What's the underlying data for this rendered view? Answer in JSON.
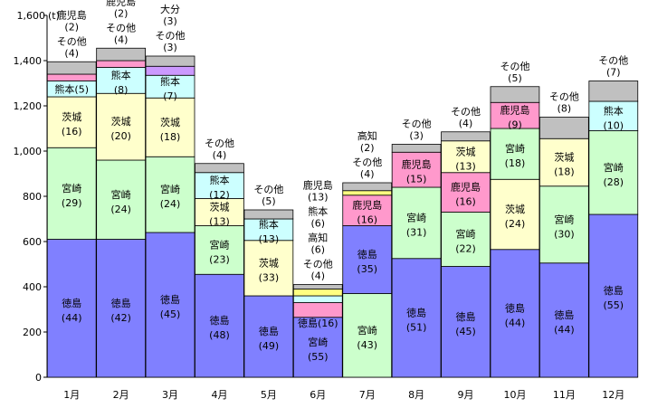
{
  "chart_data": {
    "type": "bar",
    "stacked": true,
    "unit_label": "(t)",
    "ylim": [
      0,
      1600
    ],
    "yticks": [
      "0",
      "200",
      "400",
      "600",
      "800",
      "1,000",
      "1,200",
      "1,400",
      "1,600"
    ],
    "categories": [
      "1月",
      "2月",
      "3月",
      "4月",
      "5月",
      "6月",
      "7月",
      "8月",
      "9月",
      "10月",
      "11月",
      "12月"
    ],
    "colors": {
      "tokushima": "#8080ff",
      "miyazaki": "#ccffcc",
      "ibaraki": "#ffffcc",
      "kumamoto": "#ccffff",
      "kagoshima": "#ff99cc",
      "oita": "#cc99ff",
      "kochi": "#ffff80",
      "sonota": "#c0c0c0"
    },
    "bars": [
      {
        "category": "1月",
        "segments": [
          {
            "key": "tokushima",
            "value": 610,
            "label": "徳島",
            "pct": "(44)"
          },
          {
            "key": "miyazaki",
            "value": 405,
            "label": "宮崎",
            "pct": "(29)"
          },
          {
            "key": "ibaraki",
            "value": 225,
            "label": "茨城",
            "pct": "(16)"
          },
          {
            "key": "kumamoto",
            "value": 70,
            "label": "熊本(5)",
            "pct": ""
          },
          {
            "key": "kagoshima",
            "value": 30,
            "label": "鹿児島",
            "pct": "(2)",
            "above": true
          },
          {
            "key": "sonota",
            "value": 55,
            "label": "その他",
            "pct": "(4)",
            "above": true
          }
        ]
      },
      {
        "category": "2月",
        "segments": [
          {
            "key": "tokushima",
            "value": 610,
            "label": "徳島",
            "pct": "(42)"
          },
          {
            "key": "miyazaki",
            "value": 350,
            "label": "宮崎",
            "pct": "(24)"
          },
          {
            "key": "ibaraki",
            "value": 295,
            "label": "茨城",
            "pct": "(20)"
          },
          {
            "key": "kumamoto",
            "value": 115,
            "label": "熊本",
            "pct": "(8)"
          },
          {
            "key": "kagoshima",
            "value": 30,
            "label": "鹿児島",
            "pct": "(2)",
            "above": true
          },
          {
            "key": "sonota",
            "value": 55,
            "label": "その他",
            "pct": "(4)",
            "above": true
          }
        ]
      },
      {
        "category": "3月",
        "segments": [
          {
            "key": "tokushima",
            "value": 640,
            "label": "徳島",
            "pct": "(45)"
          },
          {
            "key": "miyazaki",
            "value": 335,
            "label": "宮崎",
            "pct": "(24)"
          },
          {
            "key": "ibaraki",
            "value": 260,
            "label": "茨城",
            "pct": "(18)"
          },
          {
            "key": "kumamoto",
            "value": 100,
            "label": "熊本",
            "pct": "(7)"
          },
          {
            "key": "oita",
            "value": 40,
            "label": "大分",
            "pct": "(3)",
            "above": true
          },
          {
            "key": "sonota",
            "value": 45,
            "label": "その他",
            "pct": "(3)",
            "above": true
          }
        ]
      },
      {
        "category": "4月",
        "segments": [
          {
            "key": "tokushima",
            "value": 455,
            "label": "徳島",
            "pct": "(48)"
          },
          {
            "key": "miyazaki",
            "value": 215,
            "label": "宮崎",
            "pct": "(23)"
          },
          {
            "key": "ibaraki",
            "value": 120,
            "label": "茨城",
            "pct": "(13)"
          },
          {
            "key": "kumamoto",
            "value": 115,
            "label": "熊本",
            "pct": "(12)"
          },
          {
            "key": "sonota",
            "value": 40,
            "label": "その他",
            "pct": "(4)",
            "above": true
          }
        ]
      },
      {
        "category": "5月",
        "segments": [
          {
            "key": "tokushima",
            "value": 360,
            "label": "徳島",
            "pct": "(49)"
          },
          {
            "key": "ibaraki",
            "value": 245,
            "label": "茨城",
            "pct": "(33)"
          },
          {
            "key": "kumamoto",
            "value": 95,
            "label": "熊本",
            "pct": "(13)"
          },
          {
            "key": "sonota",
            "value": 40,
            "label": "その他",
            "pct": "(5)",
            "above": true
          }
        ]
      },
      {
        "category": "6月",
        "segments": [
          {
            "key": "tokushima",
            "value": 265,
            "label": "宮崎",
            "pct": "(55)",
            "label2": "徳島(16)"
          },
          {
            "key": "kagoshima",
            "value": 65,
            "label": "鹿児島",
            "pct": "(13)",
            "above": true
          },
          {
            "key": "kumamoto",
            "value": 30,
            "label": "熊本",
            "pct": "(6)",
            "above": true
          },
          {
            "key": "kochi",
            "value": 30,
            "label": "高知",
            "pct": "(6)",
            "above": true
          },
          {
            "key": "sonota",
            "value": 20,
            "label": "その他",
            "pct": "(4)",
            "above": true
          }
        ]
      },
      {
        "category": "7月",
        "segments": [
          {
            "key": "miyazaki",
            "value": 370,
            "label": "宮崎",
            "pct": "(43)"
          },
          {
            "key": "tokushima",
            "value": 300,
            "label": "徳島",
            "pct": "(35)"
          },
          {
            "key": "kagoshima",
            "value": 135,
            "label": "鹿児島",
            "pct": "(16)"
          },
          {
            "key": "kochi",
            "value": 20,
            "label": "高知",
            "pct": "(2)",
            "above": true
          },
          {
            "key": "sonota",
            "value": 35,
            "label": "その他",
            "pct": "(4)",
            "above": true
          }
        ]
      },
      {
        "category": "8月",
        "segments": [
          {
            "key": "tokushima",
            "value": 525,
            "label": "徳島",
            "pct": "(51)"
          },
          {
            "key": "miyazaki",
            "value": 315,
            "label": "宮崎",
            "pct": "(31)"
          },
          {
            "key": "kagoshima",
            "value": 155,
            "label": "鹿児島",
            "pct": "(15)"
          },
          {
            "key": "sonota",
            "value": 35,
            "label": "その他",
            "pct": "(3)",
            "above": true
          }
        ]
      },
      {
        "category": "9月",
        "segments": [
          {
            "key": "tokushima",
            "value": 490,
            "label": "徳島",
            "pct": "(45)"
          },
          {
            "key": "miyazaki",
            "value": 240,
            "label": "宮崎",
            "pct": "(22)"
          },
          {
            "key": "kagoshima",
            "value": 175,
            "label": "鹿児島",
            "pct": "(16)"
          },
          {
            "key": "ibaraki",
            "value": 140,
            "label": "茨城",
            "pct": "(13)"
          },
          {
            "key": "sonota",
            "value": 40,
            "label": "その他",
            "pct": "(4)",
            "above": true
          }
        ]
      },
      {
        "category": "10月",
        "segments": [
          {
            "key": "tokushima",
            "value": 565,
            "label": "徳島",
            "pct": "(44)"
          },
          {
            "key": "ibaraki",
            "value": 310,
            "label": "茨城",
            "pct": "(24)"
          },
          {
            "key": "miyazaki",
            "value": 225,
            "label": "宮崎",
            "pct": "(18)"
          },
          {
            "key": "kagoshima",
            "value": 115,
            "label": "鹿児島",
            "pct": "(9)"
          },
          {
            "key": "sonota",
            "value": 70,
            "label": "その他",
            "pct": "(5)",
            "above": true
          }
        ]
      },
      {
        "category": "11月",
        "segments": [
          {
            "key": "tokushima",
            "value": 505,
            "label": "徳島",
            "pct": "(44)"
          },
          {
            "key": "miyazaki",
            "value": 340,
            "label": "宮崎",
            "pct": "(30)"
          },
          {
            "key": "ibaraki",
            "value": 210,
            "label": "茨城",
            "pct": "(18)"
          },
          {
            "key": "sonota",
            "value": 95,
            "label": "その他",
            "pct": "(8)",
            "above": true
          }
        ]
      },
      {
        "category": "12月",
        "segments": [
          {
            "key": "tokushima",
            "value": 720,
            "label": "徳島",
            "pct": "(55)"
          },
          {
            "key": "miyazaki",
            "value": 370,
            "label": "宮崎",
            "pct": "(28)"
          },
          {
            "key": "kumamoto",
            "value": 130,
            "label": "熊本",
            "pct": "(10)"
          },
          {
            "key": "sonota",
            "value": 90,
            "label": "その他",
            "pct": "(7)",
            "above": true
          }
        ]
      }
    ]
  }
}
